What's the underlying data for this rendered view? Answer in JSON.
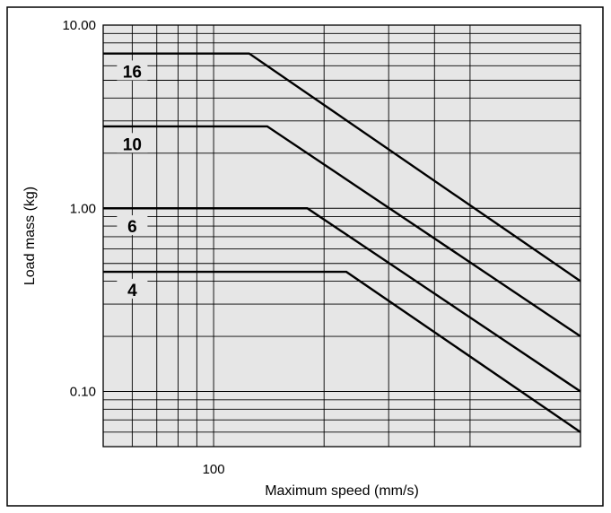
{
  "chart_data": {
    "type": "line",
    "xscale": "log",
    "yscale": "log",
    "xlabel": "Maximum speed (mm/s)",
    "ylabel": "Load mass (kg)",
    "xlim": [
      50,
      1000
    ],
    "ylim": [
      0.05,
      10
    ],
    "x_ticks": [
      {
        "value": 100,
        "label": "100"
      }
    ],
    "y_ticks": [
      {
        "value": 10,
        "label": "10.00"
      },
      {
        "value": 1,
        "label": "1.00"
      },
      {
        "value": 0.1,
        "label": "0.10"
      }
    ],
    "x_gridlines": [
      60,
      70,
      80,
      90,
      100,
      200,
      300,
      400,
      500
    ],
    "y_gridlines": [
      0.06,
      0.07,
      0.08,
      0.09,
      0.1,
      0.2,
      0.3,
      0.4,
      0.5,
      0.6,
      0.7,
      0.8,
      0.9,
      1,
      2,
      3,
      4,
      5,
      6,
      7,
      8,
      9,
      10
    ],
    "grid": true,
    "series": [
      {
        "name": "16",
        "x": [
          50,
          125,
          1000
        ],
        "y": [
          7,
          7,
          0.4
        ],
        "label_at": [
          60,
          5.6
        ]
      },
      {
        "name": "10",
        "x": [
          50,
          140,
          1000
        ],
        "y": [
          2.8,
          2.8,
          0.2
        ],
        "label_at": [
          60,
          2.25
        ]
      },
      {
        "name": "6",
        "x": [
          50,
          180,
          1000
        ],
        "y": [
          1,
          1,
          0.1
        ],
        "label_at": [
          60,
          0.8
        ]
      },
      {
        "name": "4",
        "x": [
          50,
          230,
          1000
        ],
        "y": [
          0.45,
          0.45,
          0.06
        ],
        "label_at": [
          60,
          0.36
        ]
      }
    ]
  }
}
